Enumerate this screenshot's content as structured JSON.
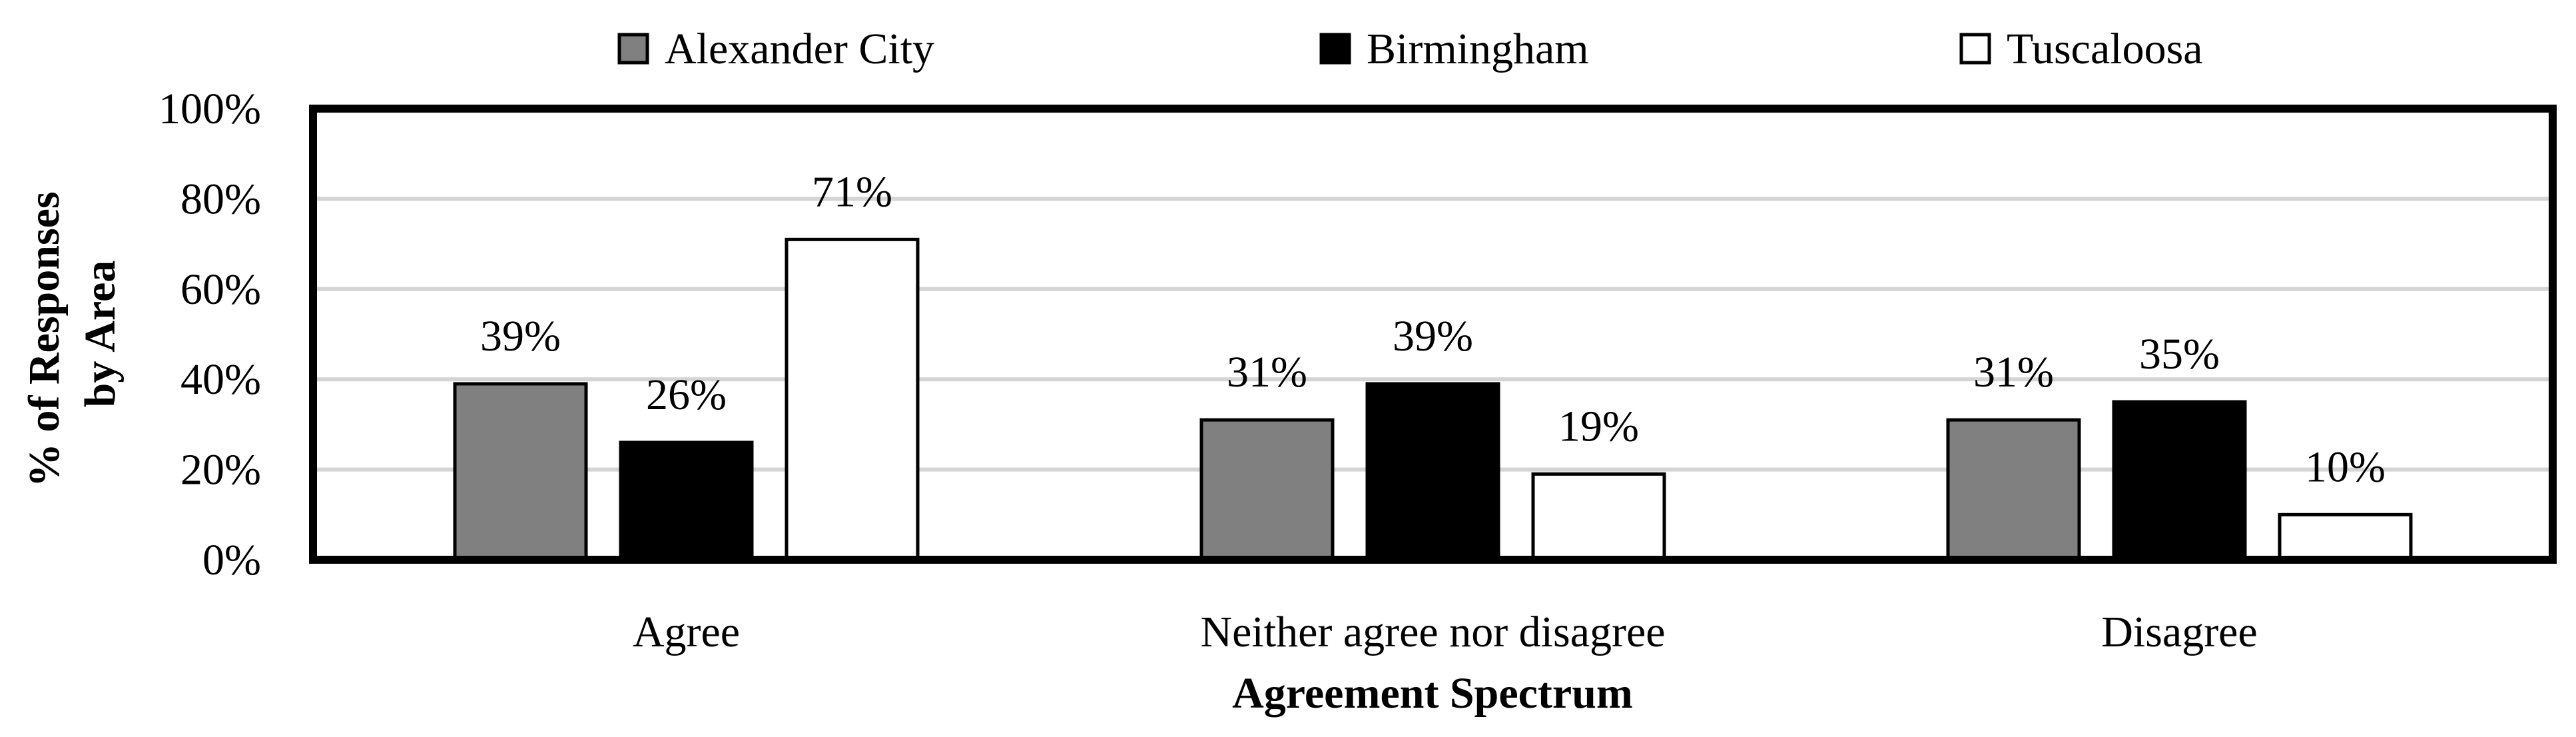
{
  "chart_data": {
    "type": "bar",
    "title": "",
    "xlabel": "Agreement Spectrum",
    "ylabel": [
      "% of Responses",
      "by Area"
    ],
    "categories": [
      "Agree",
      "Neither agree nor disagree",
      "Disagree"
    ],
    "ylim": [
      0,
      100
    ],
    "yticks": [
      0,
      20,
      40,
      60,
      80,
      100
    ],
    "ytick_labels": [
      "0%",
      "20%",
      "40%",
      "60%",
      "80%",
      "100%"
    ],
    "grid": true,
    "legend_position": "top",
    "series": [
      {
        "name": "Alexander City",
        "color": "#808080",
        "values": [
          39,
          31,
          31
        ],
        "labels": [
          "39%",
          "31%",
          "31%"
        ]
      },
      {
        "name": "Birmingham",
        "color": "#000000",
        "values": [
          26,
          39,
          35
        ],
        "labels": [
          "26%",
          "39%",
          "35%"
        ]
      },
      {
        "name": "Tuscaloosa",
        "color": "#ffffff",
        "values": [
          71,
          19,
          10
        ],
        "labels": [
          "71%",
          "19%",
          "10%"
        ]
      }
    ]
  }
}
